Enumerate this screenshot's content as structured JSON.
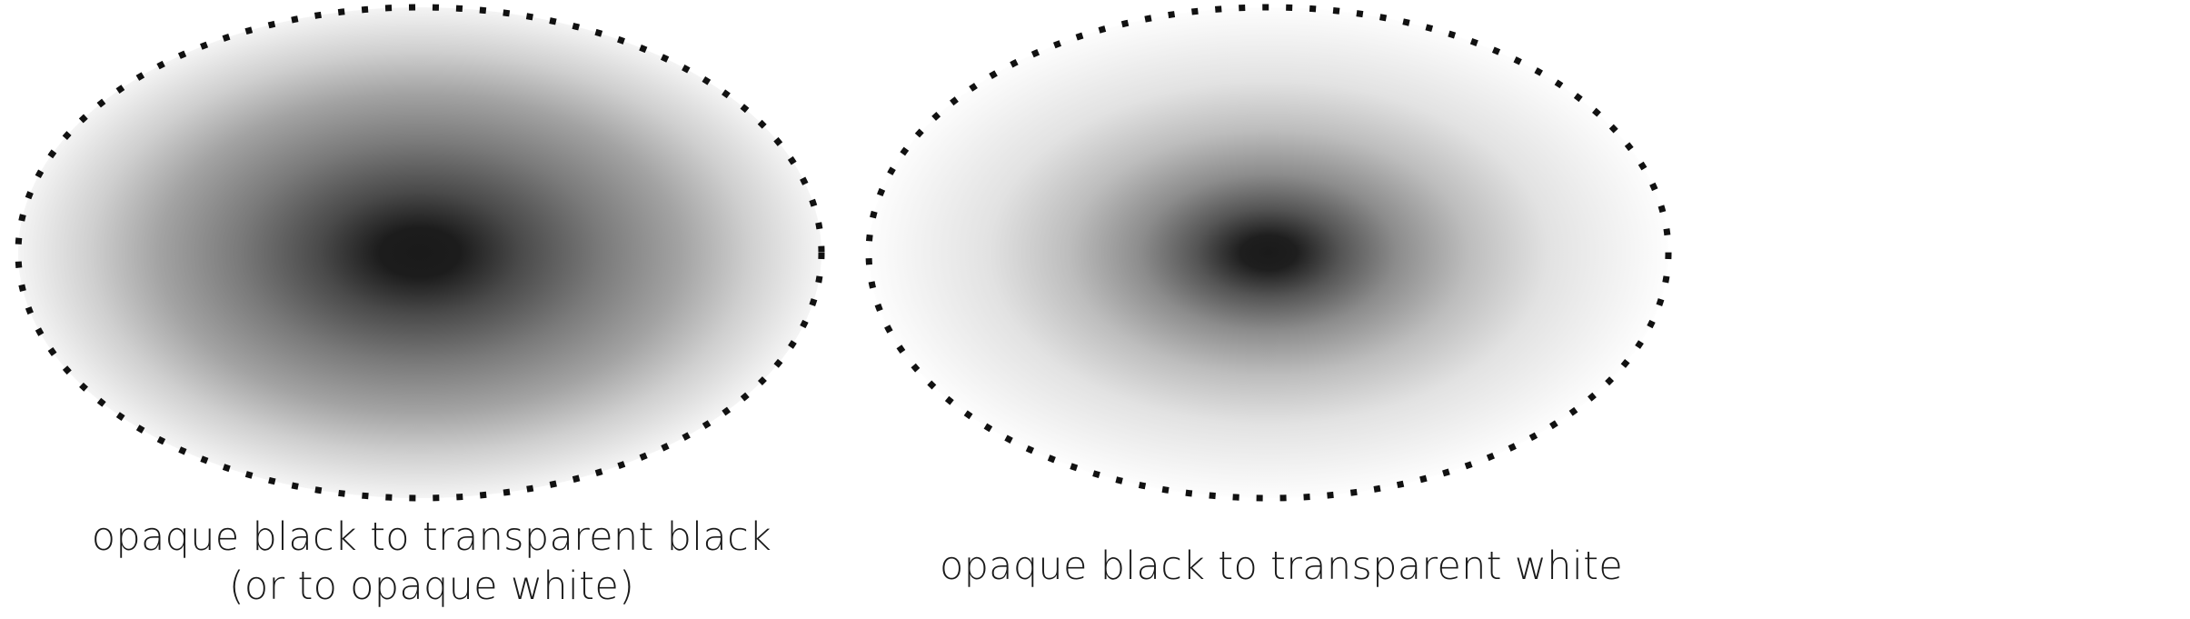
{
  "figure": {
    "panels": [
      {
        "caption_line1": "opaque black to transparent black",
        "caption_line2": "(or to opaque white)",
        "gradient": {
          "center_color": "#1a1a1a",
          "edge_color": "#ffffff",
          "style": "fades-to-light-grey"
        }
      },
      {
        "caption_line1": "opaque black to transparent white",
        "gradient": {
          "center_color": "#1a1a1a",
          "edge_color": "#ffffff",
          "style": "fades-quickly-to-white"
        }
      }
    ],
    "border_style": "dotted",
    "border_color": "#111111"
  }
}
